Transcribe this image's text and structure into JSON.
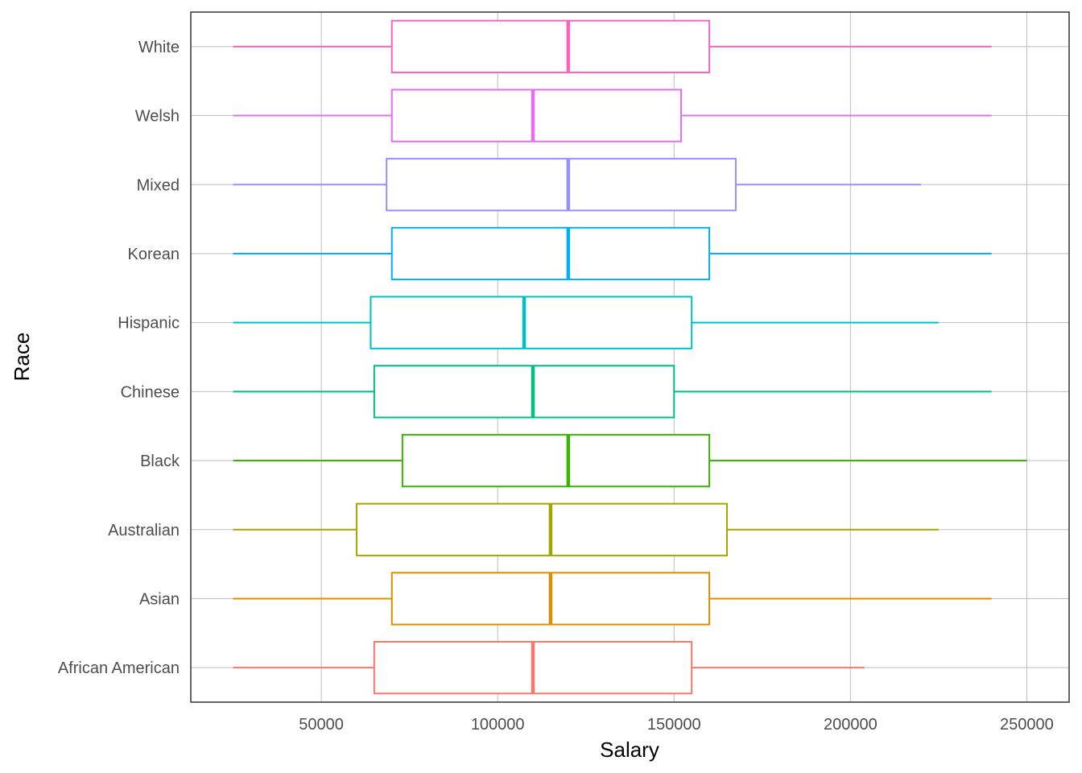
{
  "chart_data": {
    "type": "boxplot",
    "orientation": "horizontal",
    "xlabel": "Salary",
    "ylabel": "Race",
    "xlim": [
      13000,
      262000
    ],
    "xticks": [
      50000,
      100000,
      150000,
      200000,
      250000
    ],
    "xtick_labels": [
      "50000",
      "100000",
      "150000",
      "200000",
      "250000"
    ],
    "grid": true,
    "legend": "none",
    "categories": [
      "African American",
      "Asian",
      "Australian",
      "Black",
      "Chinese",
      "Hispanic",
      "Korean",
      "Mixed",
      "Welsh",
      "White"
    ],
    "series": [
      {
        "category": "African American",
        "color": "#F8766D",
        "min": 25000,
        "q1": 65000,
        "median": 110000,
        "q3": 155000,
        "max": 204000
      },
      {
        "category": "Asian",
        "color": "#D89000",
        "min": 25000,
        "q1": 70000,
        "median": 115000,
        "q3": 160000,
        "max": 240000
      },
      {
        "category": "Australian",
        "color": "#A3A500",
        "min": 25000,
        "q1": 60000,
        "median": 115000,
        "q3": 165000,
        "max": 225000
      },
      {
        "category": "Black",
        "color": "#39B600",
        "min": 25000,
        "q1": 73000,
        "median": 120000,
        "q3": 160000,
        "max": 250000
      },
      {
        "category": "Chinese",
        "color": "#00BF7D",
        "min": 25000,
        "q1": 65000,
        "median": 110000,
        "q3": 150000,
        "max": 240000
      },
      {
        "category": "Hispanic",
        "color": "#00BFC4",
        "min": 25000,
        "q1": 64000,
        "median": 107500,
        "q3": 155000,
        "max": 225000
      },
      {
        "category": "Korean",
        "color": "#00B0F6",
        "min": 25000,
        "q1": 70000,
        "median": 120000,
        "q3": 160000,
        "max": 240000
      },
      {
        "category": "Mixed",
        "color": "#9590FF",
        "min": 25000,
        "q1": 68500,
        "median": 120000,
        "q3": 167500,
        "max": 220000
      },
      {
        "category": "Welsh",
        "color": "#E76BF3",
        "min": 25000,
        "q1": 70000,
        "median": 110000,
        "q3": 152000,
        "max": 240000
      },
      {
        "category": "White",
        "color": "#FF62BC",
        "min": 25000,
        "q1": 70000,
        "median": 120000,
        "q3": 160000,
        "max": 240000
      }
    ]
  }
}
